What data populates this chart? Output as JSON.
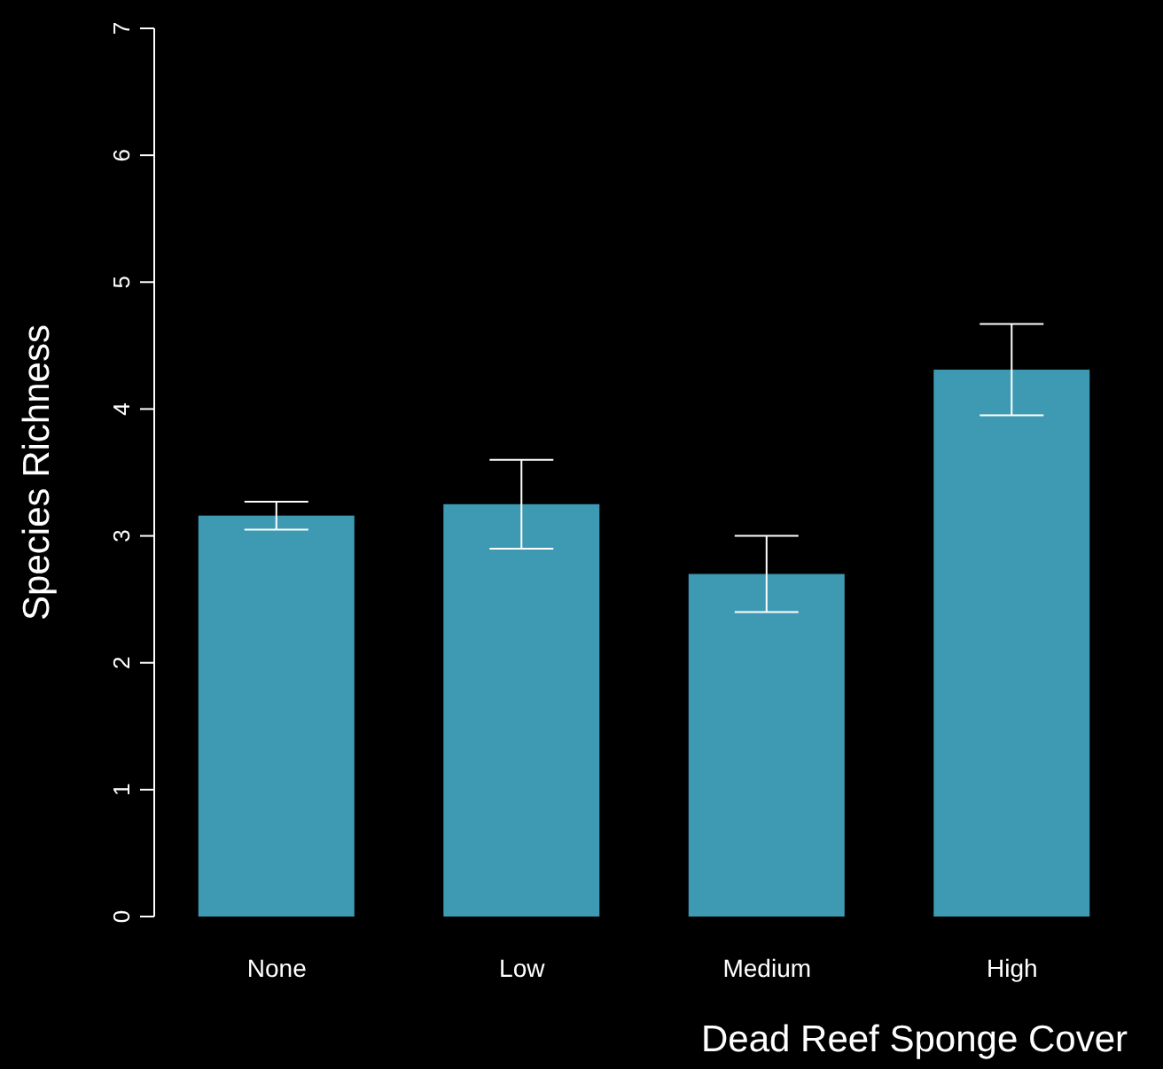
{
  "chart_data": {
    "type": "bar",
    "xlabel": "Dead Reef Sponge Cover",
    "ylabel": "Species Richness",
    "categories": [
      "None",
      "Low",
      "Medium",
      "High"
    ],
    "values": [
      3.16,
      3.25,
      2.7,
      4.31
    ],
    "errors": [
      0.11,
      0.35,
      0.3,
      0.36
    ],
    "color": "#3e9ab3",
    "ylim": [
      0,
      7
    ],
    "yticks": [
      0,
      1,
      2,
      3,
      4,
      5,
      6,
      7
    ],
    "grid": false,
    "legend": false
  }
}
